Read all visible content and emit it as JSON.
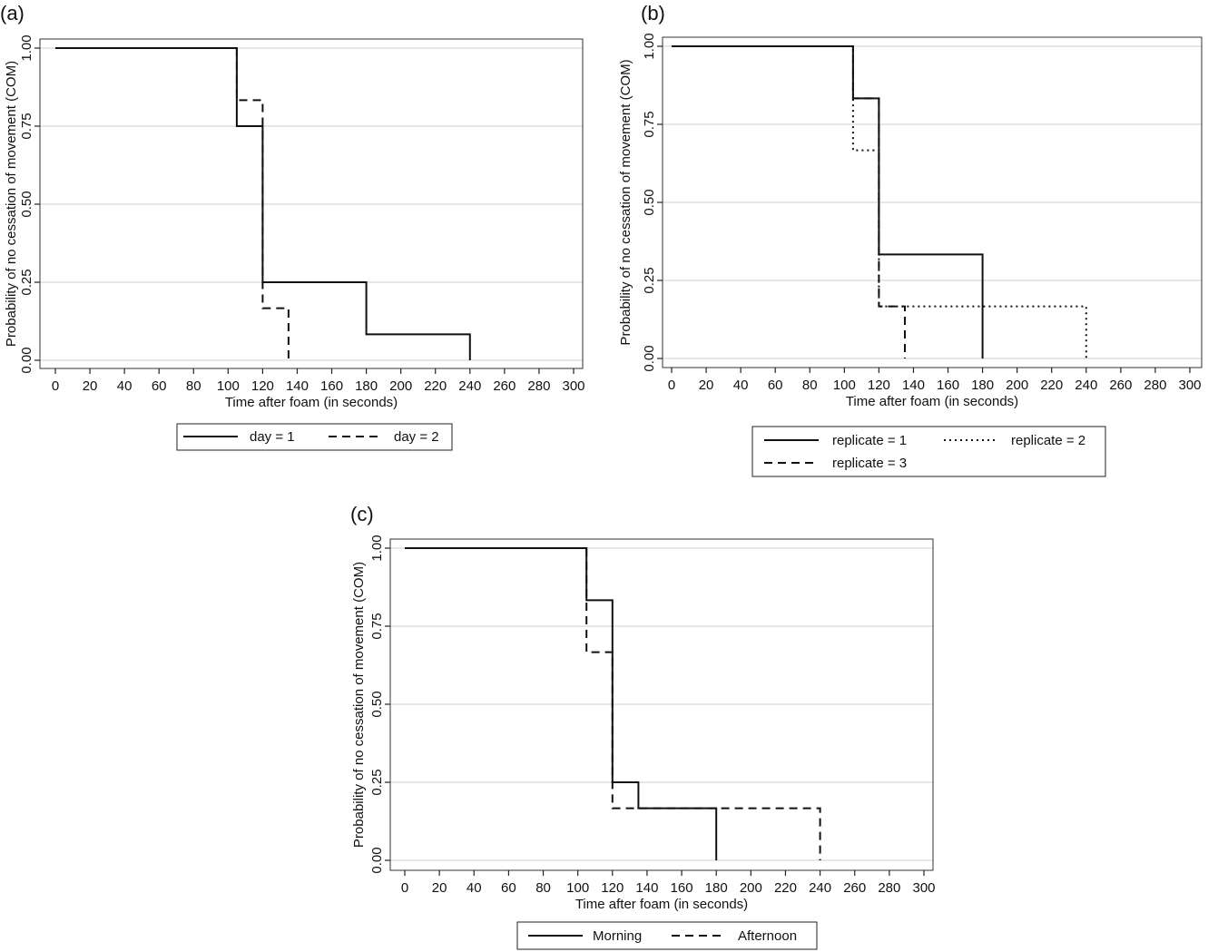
{
  "chart_data": [
    {
      "panel_label": "(a)",
      "type": "line",
      "step": true,
      "xlabel": "Time after foam (in seconds)",
      "ylabel": "Probability of no cessation of movement (COM)",
      "xlim": [
        0,
        300
      ],
      "ylim": [
        0,
        1
      ],
      "xticks": [
        "0",
        "20",
        "40",
        "60",
        "80",
        "100",
        "120",
        "140",
        "160",
        "180",
        "200",
        "220",
        "240",
        "260",
        "280",
        "300"
      ],
      "yticks": [
        "0.00",
        "0.25",
        "0.50",
        "0.75",
        "1.00"
      ],
      "grid": "horizontal",
      "legend_position": "bottom",
      "series": [
        {
          "name": "day = 1",
          "style": "solid",
          "points": [
            [
              0,
              1.0
            ],
            [
              105,
              1.0
            ],
            [
              105,
              0.75
            ],
            [
              120,
              0.75
            ],
            [
              120,
              0.25
            ],
            [
              180,
              0.25
            ],
            [
              180,
              0.083
            ],
            [
              240,
              0.083
            ],
            [
              240,
              0.0
            ]
          ]
        },
        {
          "name": "day = 2",
          "style": "dashed",
          "points": [
            [
              105,
              1.0
            ],
            [
              105,
              0.833
            ],
            [
              120,
              0.833
            ],
            [
              120,
              0.167
            ],
            [
              135,
              0.167
            ],
            [
              135,
              0.0
            ]
          ]
        }
      ]
    },
    {
      "panel_label": "(b)",
      "type": "line",
      "step": true,
      "xlabel": "Time after foam (in seconds)",
      "ylabel": "Probability of no cessation of movement (COM)",
      "xlim": [
        0,
        300
      ],
      "ylim": [
        0,
        1
      ],
      "xticks": [
        "0",
        "20",
        "40",
        "60",
        "80",
        "100",
        "120",
        "140",
        "160",
        "180",
        "200",
        "220",
        "240",
        "260",
        "280",
        "300"
      ],
      "yticks": [
        "0.00",
        "0.25",
        "0.50",
        "0.75",
        "1.00"
      ],
      "grid": "horizontal",
      "legend_position": "bottom",
      "series": [
        {
          "name": "replicate = 1",
          "style": "solid",
          "points": [
            [
              0,
              1.0
            ],
            [
              105,
              1.0
            ],
            [
              105,
              0.833
            ],
            [
              120,
              0.833
            ],
            [
              120,
              0.333
            ],
            [
              180,
              0.333
            ],
            [
              180,
              0.0
            ]
          ]
        },
        {
          "name": "replicate = 2",
          "style": "dotted",
          "points": [
            [
              0,
              1.0
            ],
            [
              105,
              1.0
            ],
            [
              105,
              0.667
            ],
            [
              120,
              0.667
            ],
            [
              120,
              0.167
            ],
            [
              240,
              0.167
            ],
            [
              240,
              0.0
            ]
          ]
        },
        {
          "name": "replicate = 3",
          "style": "dashed",
          "points": [
            [
              0,
              1.0
            ],
            [
              105,
              1.0
            ],
            [
              105,
              0.833
            ],
            [
              120,
              0.833
            ],
            [
              120,
              0.167
            ],
            [
              135,
              0.167
            ],
            [
              135,
              0.0
            ]
          ]
        }
      ]
    },
    {
      "panel_label": "(c)",
      "type": "line",
      "step": true,
      "xlabel": "Time after foam (in seconds)",
      "ylabel": "Probability of no cessation of movement (COM)",
      "xlim": [
        0,
        300
      ],
      "ylim": [
        0,
        1
      ],
      "xticks": [
        "0",
        "20",
        "40",
        "60",
        "80",
        "100",
        "120",
        "140",
        "160",
        "180",
        "200",
        "220",
        "240",
        "260",
        "280",
        "300"
      ],
      "yticks": [
        "0.00",
        "0.25",
        "0.50",
        "0.75",
        "1.00"
      ],
      "grid": "horizontal",
      "legend_position": "bottom",
      "series": [
        {
          "name": "Morning",
          "style": "solid",
          "points": [
            [
              0,
              1.0
            ],
            [
              105,
              1.0
            ],
            [
              105,
              0.833
            ],
            [
              120,
              0.833
            ],
            [
              120,
              0.25
            ],
            [
              135,
              0.25
            ],
            [
              135,
              0.167
            ],
            [
              180,
              0.167
            ],
            [
              180,
              0.0
            ]
          ]
        },
        {
          "name": "Afternoon",
          "style": "dashed",
          "points": [
            [
              105,
              1.0
            ],
            [
              105,
              0.667
            ],
            [
              120,
              0.667
            ],
            [
              120,
              0.167
            ],
            [
              240,
              0.167
            ],
            [
              240,
              0.0
            ]
          ]
        }
      ]
    }
  ]
}
